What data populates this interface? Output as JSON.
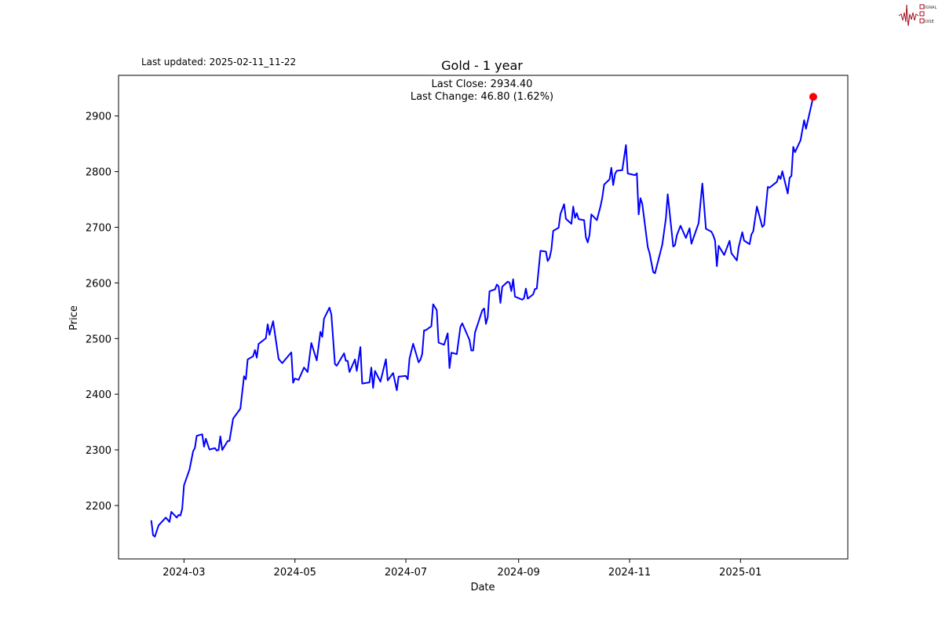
{
  "header": {
    "last_updated": "Last updated: 2025-02-11_11-22"
  },
  "logo": {
    "text": "SIGNAL 2 NOISE",
    "color": "#a01020"
  },
  "chart_data": {
    "type": "line",
    "title": "Gold - 1 year",
    "annotation": {
      "last_close": "Last Close: 2934.40",
      "last_change": "Last Change: 46.80 (1.62%)"
    },
    "xlabel": "Date",
    "ylabel": "Price",
    "xlim": [
      "2024-01-25",
      "2025-03-01"
    ],
    "ylim": [
      2104,
      2973
    ],
    "x_ticks": [
      "2024-03",
      "2024-05",
      "2024-07",
      "2024-09",
      "2024-11",
      "2025-01"
    ],
    "y_ticks": [
      2200,
      2300,
      2400,
      2500,
      2600,
      2700,
      2800,
      2900
    ],
    "grid": false,
    "line_color": "#0000ff",
    "marker_color": "#ff0000",
    "last_point": {
      "x": "2025-02-10",
      "y": 2934.4
    },
    "x": [
      "2024-02-12",
      "2024-02-13",
      "2024-02-14",
      "2024-02-16",
      "2024-02-20",
      "2024-02-22",
      "2024-02-23",
      "2024-02-26",
      "2024-02-27",
      "2024-02-28",
      "2024-02-29",
      "2024-03-01",
      "2024-03-04",
      "2024-03-06",
      "2024-03-07",
      "2024-03-08",
      "2024-03-11",
      "2024-03-12",
      "2024-03-13",
      "2024-03-15",
      "2024-03-18",
      "2024-03-19",
      "2024-03-20",
      "2024-03-21",
      "2024-03-22",
      "2024-03-25",
      "2024-03-26",
      "2024-03-28",
      "2024-04-01",
      "2024-04-03",
      "2024-04-04",
      "2024-04-05",
      "2024-04-08",
      "2024-04-09",
      "2024-04-10",
      "2024-04-11",
      "2024-04-15",
      "2024-04-16",
      "2024-04-17",
      "2024-04-19",
      "2024-04-22",
      "2024-04-24",
      "2024-04-29",
      "2024-04-30",
      "2024-05-01",
      "2024-05-03",
      "2024-05-06",
      "2024-05-08",
      "2024-05-10",
      "2024-05-13",
      "2024-05-15",
      "2024-05-16",
      "2024-05-17",
      "2024-05-20",
      "2024-05-21",
      "2024-05-23",
      "2024-05-24",
      "2024-05-28",
      "2024-05-29",
      "2024-05-30",
      "2024-05-31",
      "2024-06-03",
      "2024-06-04",
      "2024-06-06",
      "2024-06-07",
      "2024-06-11",
      "2024-06-12",
      "2024-06-13",
      "2024-06-14",
      "2024-06-17",
      "2024-06-20",
      "2024-06-21",
      "2024-06-24",
      "2024-06-26",
      "2024-06-27",
      "2024-07-01",
      "2024-07-02",
      "2024-07-03",
      "2024-07-05",
      "2024-07-08",
      "2024-07-09",
      "2024-07-10",
      "2024-07-11",
      "2024-07-12",
      "2024-07-15",
      "2024-07-16",
      "2024-07-18",
      "2024-07-19",
      "2024-07-22",
      "2024-07-24",
      "2024-07-25",
      "2024-07-26",
      "2024-07-29",
      "2024-07-31",
      "2024-08-01",
      "2024-08-05",
      "2024-08-06",
      "2024-08-07",
      "2024-08-08",
      "2024-08-12",
      "2024-08-13",
      "2024-08-14",
      "2024-08-15",
      "2024-08-16",
      "2024-08-19",
      "2024-08-20",
      "2024-08-21",
      "2024-08-22",
      "2024-08-23",
      "2024-08-26",
      "2024-08-27",
      "2024-08-28",
      "2024-08-29",
      "2024-08-30",
      "2024-09-03",
      "2024-09-04",
      "2024-09-05",
      "2024-09-06",
      "2024-09-09",
      "2024-09-10",
      "2024-09-11",
      "2024-09-13",
      "2024-09-16",
      "2024-09-17",
      "2024-09-18",
      "2024-09-19",
      "2024-09-20",
      "2024-09-23",
      "2024-09-24",
      "2024-09-26",
      "2024-09-27",
      "2024-09-30",
      "2024-10-01",
      "2024-10-02",
      "2024-10-03",
      "2024-10-04",
      "2024-10-07",
      "2024-10-08",
      "2024-10-09",
      "2024-10-10",
      "2024-10-11",
      "2024-10-14",
      "2024-10-16",
      "2024-10-17",
      "2024-10-18",
      "2024-10-21",
      "2024-10-22",
      "2024-10-23",
      "2024-10-24",
      "2024-10-25",
      "2024-10-28",
      "2024-10-30",
      "2024-10-31",
      "2024-11-04",
      "2024-11-05",
      "2024-11-06",
      "2024-11-07",
      "2024-11-08",
      "2024-11-11",
      "2024-11-12",
      "2024-11-14",
      "2024-11-15",
      "2024-11-19",
      "2024-11-21",
      "2024-11-22",
      "2024-11-25",
      "2024-11-26",
      "2024-11-27",
      "2024-11-29",
      "2024-12-02",
      "2024-12-04",
      "2024-12-05",
      "2024-12-09",
      "2024-12-10",
      "2024-12-11",
      "2024-12-13",
      "2024-12-16",
      "2024-12-17",
      "2024-12-18",
      "2024-12-19",
      "2024-12-20",
      "2024-12-23",
      "2024-12-26",
      "2024-12-27",
      "2024-12-30",
      "2024-12-31",
      "2025-01-02",
      "2025-01-03",
      "2025-01-06",
      "2025-01-07",
      "2025-01-08",
      "2025-01-10",
      "2025-01-13",
      "2025-01-14",
      "2025-01-16",
      "2025-01-17",
      "2025-01-21",
      "2025-01-22",
      "2025-01-23",
      "2025-01-24",
      "2025-01-27",
      "2025-01-28",
      "2025-01-29",
      "2025-01-30",
      "2025-01-31",
      "2025-02-03",
      "2025-02-05",
      "2025-02-06",
      "2025-02-10"
    ],
    "y": [
      2173.6,
      2146.8,
      2144.0,
      2164.3,
      2178.4,
      2170.4,
      2188.7,
      2178.4,
      2183.0,
      2182.0,
      2193.9,
      2236.3,
      2264.5,
      2297.4,
      2303.4,
      2325.2,
      2328.0,
      2305.8,
      2320.0,
      2300.6,
      2303.0,
      2298.8,
      2299.8,
      2324.2,
      2299.8,
      2315.7,
      2316.2,
      2356.2,
      2374.0,
      2432.4,
      2426.8,
      2462.5,
      2468.1,
      2479.4,
      2465.7,
      2490.3,
      2500.6,
      2525.6,
      2506.7,
      2531.2,
      2463.5,
      2455.9,
      2475.2,
      2420.6,
      2428.2,
      2425.8,
      2448.0,
      2439.9,
      2492.1,
      2460.7,
      2512.3,
      2503.0,
      2535.9,
      2555.6,
      2543.4,
      2454.0,
      2451.2,
      2473.4,
      2460.1,
      2460.1,
      2439.9,
      2462.5,
      2441.8,
      2484.7,
      2419.2,
      2421.2,
      2448.0,
      2411.3,
      2441.8,
      2422.6,
      2462.9,
      2424.8,
      2438.1,
      2407.0,
      2431.5,
      2432.9,
      2426.8,
      2464.3,
      2490.7,
      2457.3,
      2462.1,
      2472.8,
      2514.7,
      2515.1,
      2522.2,
      2561.7,
      2551.0,
      2492.6,
      2488.9,
      2509.5,
      2447.0,
      2474.8,
      2472.0,
      2520.8,
      2527.4,
      2497.4,
      2478.5,
      2478.5,
      2510.9,
      2550.4,
      2554.2,
      2526.4,
      2538.7,
      2584.9,
      2588.5,
      2597.0,
      2593.8,
      2564.1,
      2593.3,
      2602.2,
      2600.4,
      2585.3,
      2606.5,
      2575.4,
      2569.8,
      2572.6,
      2589.9,
      2571.6,
      2579.6,
      2589.1,
      2589.9,
      2657.7,
      2656.3,
      2639.3,
      2645.0,
      2660.1,
      2693.5,
      2699.2,
      2724.0,
      2741.5,
      2715.1,
      2706.2,
      2737.3,
      2717.0,
      2725.4,
      2714.7,
      2712.7,
      2681.7,
      2672.8,
      2686.5,
      2723.2,
      2712.7,
      2737.3,
      2752.8,
      2776.8,
      2786.1,
      2806.9,
      2775.8,
      2796.0,
      2801.6,
      2802.6,
      2847.8,
      2796.6,
      2793.7,
      2797.0,
      2723.2,
      2752.2,
      2741.9,
      2664.3,
      2653.5,
      2619.6,
      2617.3,
      2669.0,
      2716.1,
      2759.3,
      2665.3,
      2668.1,
      2685.5,
      2702.9,
      2680.8,
      2698.2,
      2670.4,
      2707.6,
      2742.9,
      2778.6,
      2697.2,
      2692.1,
      2685.5,
      2676.0,
      2630.0,
      2666.7,
      2650.2,
      2675.6,
      2653.5,
      2640.3,
      2664.3,
      2691.1,
      2676.0,
      2669.5,
      2686.9,
      2692.5,
      2737.3,
      2700.6,
      2704.3,
      2772.6,
      2771.2,
      2781.5,
      2792.3,
      2786.7,
      2800.8,
      2760.7,
      2789.0,
      2792.3,
      2844.5,
      2835.1,
      2856.3,
      2892.5,
      2877.0,
      2934.4
    ]
  }
}
